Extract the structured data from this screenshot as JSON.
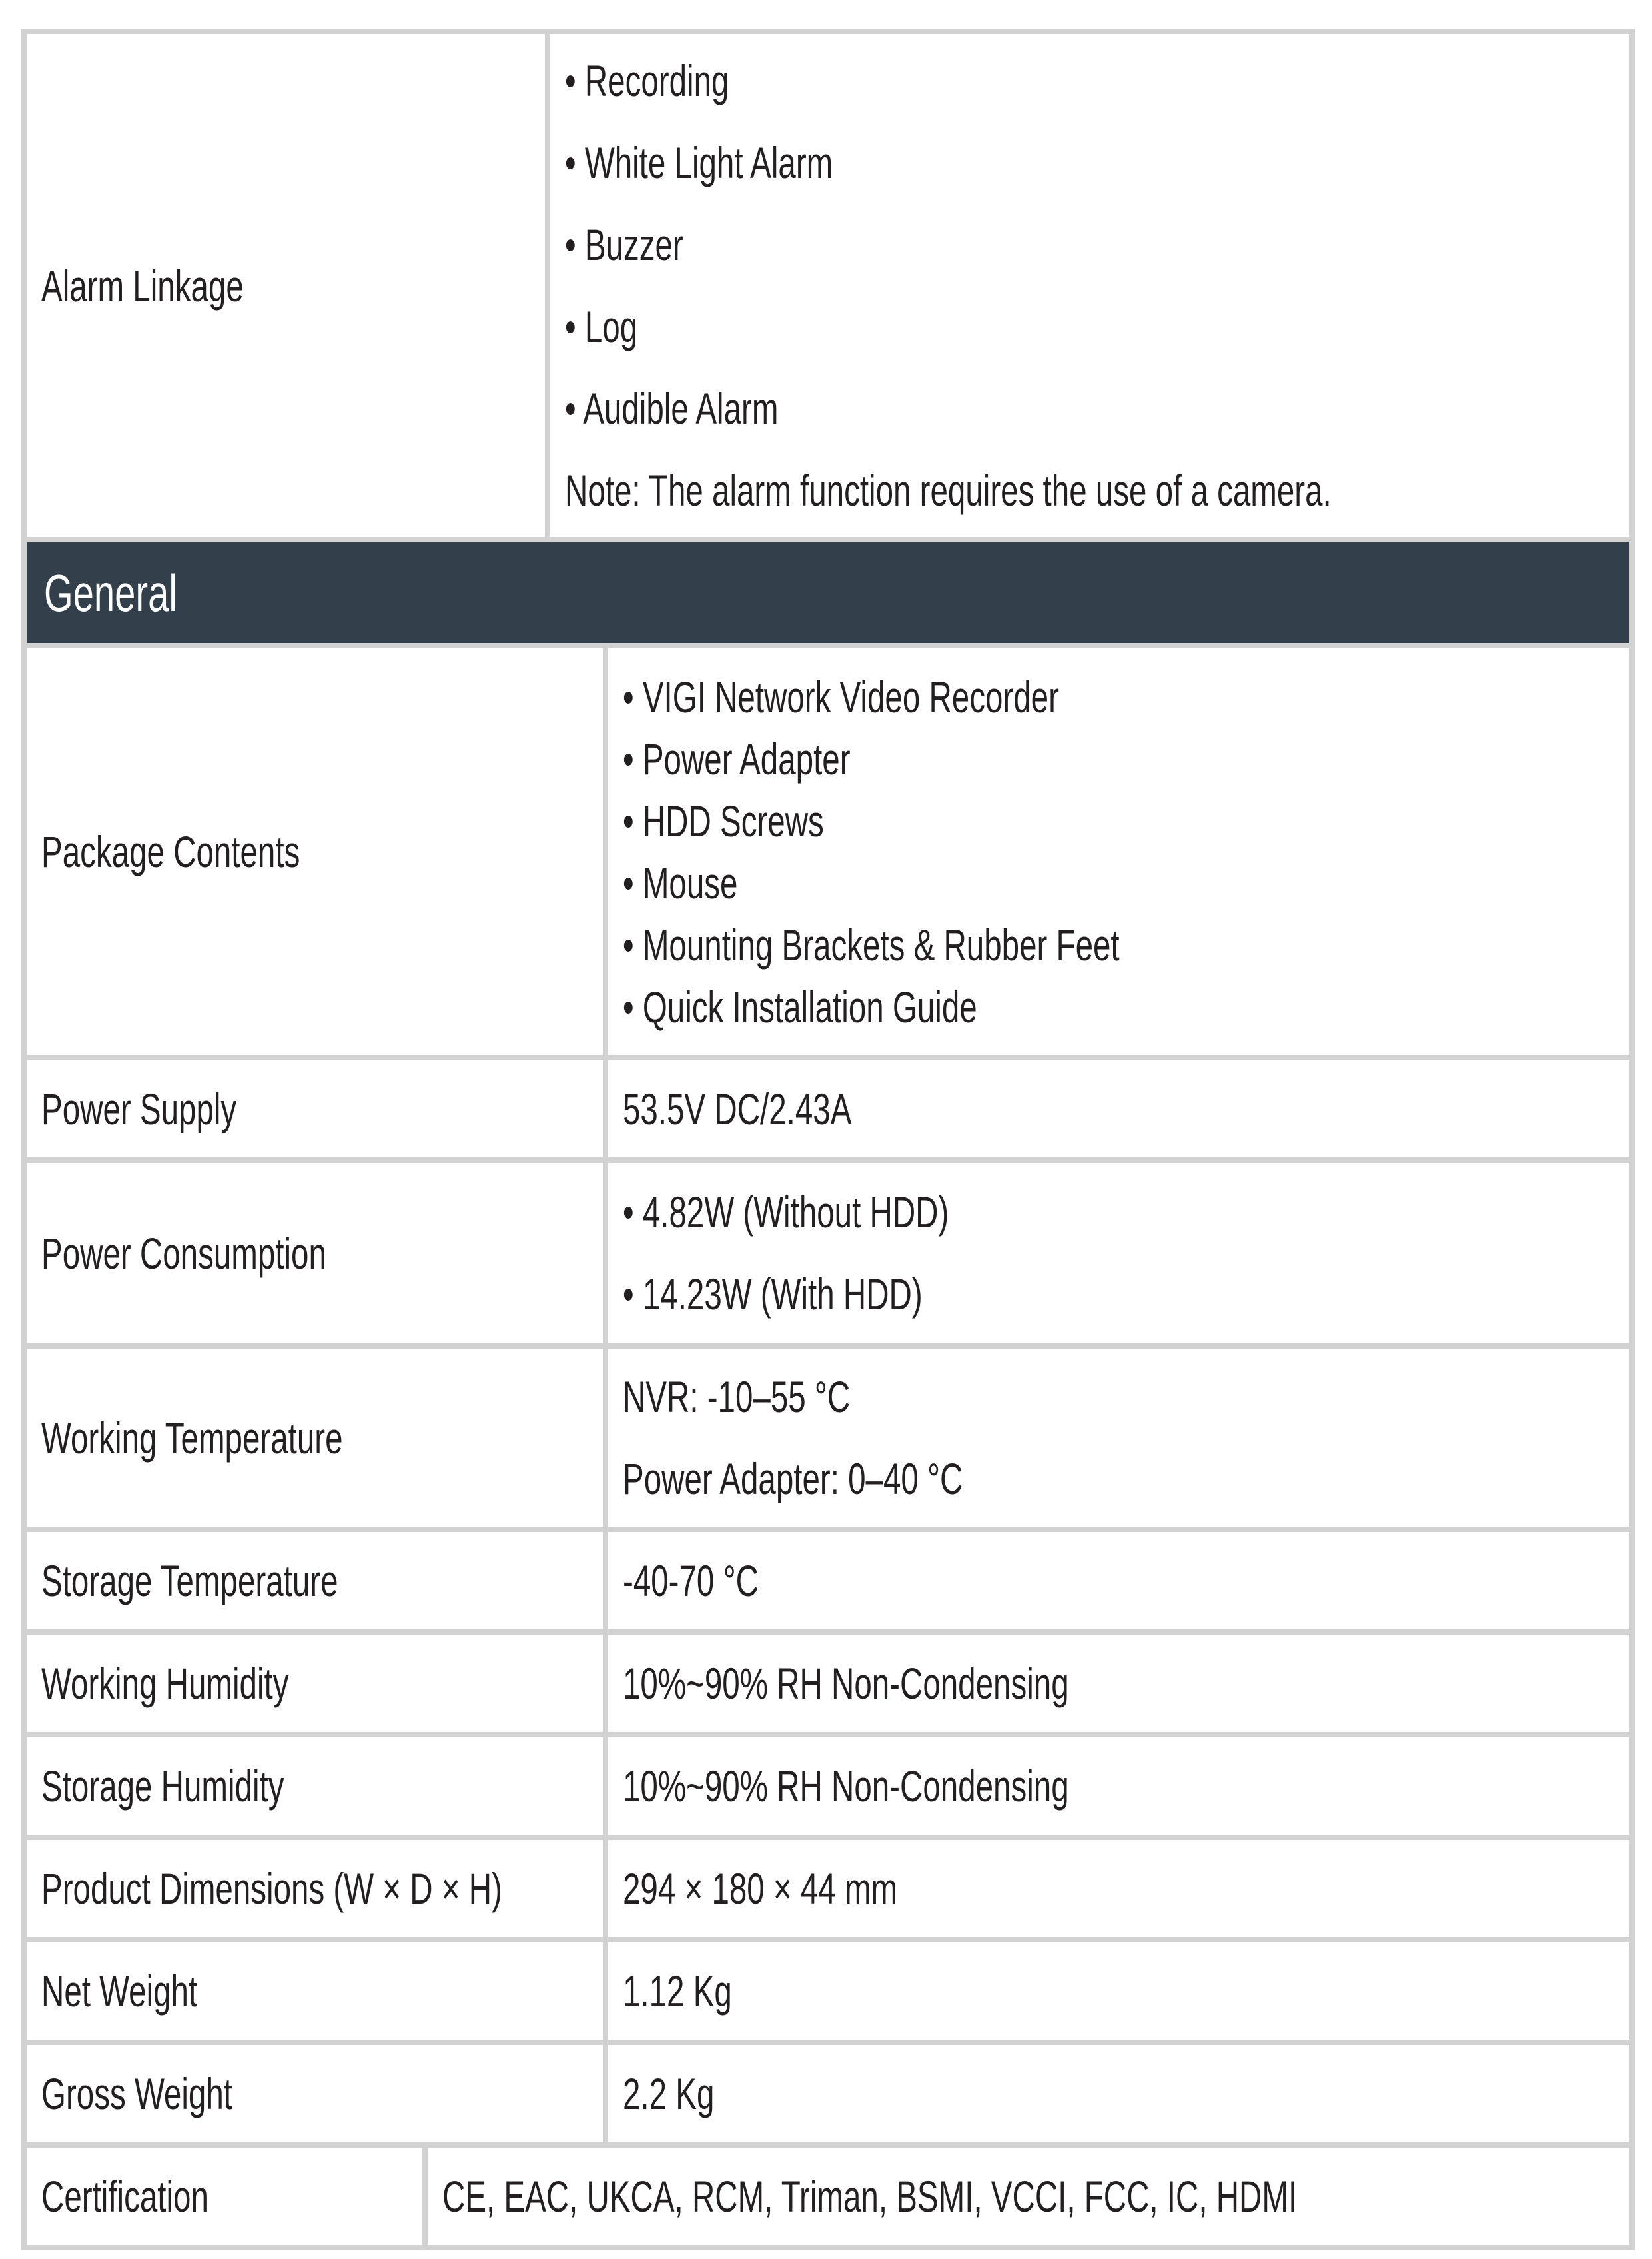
{
  "alarm": {
    "label": "Alarm Linkage",
    "items": [
      "• Recording",
      "• White Light Alarm",
      "• Buzzer",
      "• Log",
      "• Audible Alarm"
    ],
    "note": "Note: The alarm function requires the use of a camera."
  },
  "section": "General",
  "package": {
    "label": "Package Contents",
    "items": [
      "• VIGI Network Video Recorder",
      "• Power Adapter",
      "• HDD Screws",
      "• Mouse",
      "• Mounting Brackets & Rubber Feet",
      "• Quick Installation Guide"
    ]
  },
  "power_supply": {
    "label": "Power Supply",
    "value": "53.5V DC/2.43A"
  },
  "power_consumption": {
    "label": "Power Consumption",
    "items": [
      "• 4.82W (Without HDD)",
      "• 14.23W (With HDD)"
    ]
  },
  "working_temp": {
    "label": "Working Temperature",
    "items": [
      "NVR: -10–55 °C",
      "Power Adapter: 0–40 °C"
    ]
  },
  "rows": [
    {
      "label": "Storage Temperature",
      "value": "-40-70 °C"
    },
    {
      "label": "Working Humidity",
      "value": "10%~90% RH Non-Condensing"
    },
    {
      "label": "Storage Humidity",
      "value": "10%~90% RH Non-Condensing"
    },
    {
      "label": "Product Dimensions (W × D ×  H)",
      "value": "294 × 180 × 44 mm"
    },
    {
      "label": "Net Weight",
      "value": "1.12 Kg"
    },
    {
      "label": "Gross Weight",
      "value": "2.2 Kg"
    },
    {
      "label": "Certification",
      "value": "CE, EAC, UKCA, RCM, Triman, BSMI, VCCI, FCC, IC, HDMI"
    }
  ],
  "colors": {
    "header_bg": "#333f4a",
    "border": "#d2d2d2"
  }
}
